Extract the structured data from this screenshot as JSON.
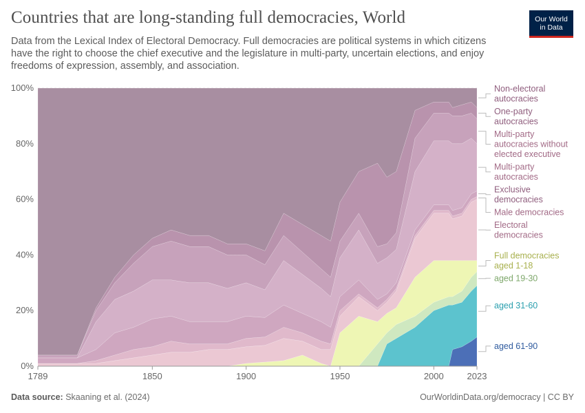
{
  "header": {
    "title": "Countries that are long-standing full democracies, World",
    "subtitle": "Data from the Lexical Index of Electoral Democracy. Full democracies are political systems in which citizens have the right to choose the chief executive and the legislature in multi-party, uncertain elections, and enjoy freedoms of expression, assembly, and association.",
    "logo_line1": "Our World",
    "logo_line2": "in Data"
  },
  "footer": {
    "source_label": "Data source:",
    "source_text": "Skaaning et al. (2024)",
    "url": "OurWorldinData.org/democracy | CC BY"
  },
  "chart_data": {
    "type": "area",
    "stacked": true,
    "normalized": true,
    "x_ticks": [
      1789,
      1850,
      1900,
      1950,
      2000,
      2023
    ],
    "xlim": [
      1789,
      2023
    ],
    "y_ticks": [
      "0%",
      "20%",
      "40%",
      "60%",
      "80%",
      "100%"
    ],
    "ylim": [
      0,
      100
    ],
    "grid": "horizontal",
    "legend_placement": "right",
    "years": [
      1789,
      1800,
      1810,
      1820,
      1830,
      1840,
      1850,
      1860,
      1870,
      1880,
      1890,
      1900,
      1910,
      1920,
      1930,
      1940,
      1945,
      1950,
      1960,
      1970,
      1975,
      1980,
      1990,
      2000,
      2008,
      2010,
      2015,
      2020,
      2023
    ],
    "series": [
      {
        "name": "aged 61-90",
        "label": "aged 61-90",
        "color": "#4c6fb7",
        "label_color": "#2f5b9e",
        "values": [
          0,
          0,
          0,
          0,
          0,
          0,
          0,
          0,
          0,
          0,
          0,
          0,
          0,
          0,
          0,
          0,
          0,
          0,
          0,
          0,
          0,
          0,
          0,
          0,
          0,
          6,
          7,
          9,
          10.5
        ]
      },
      {
        "name": "aged 31-60",
        "label": "aged 31-60",
        "color": "#5cc3ce",
        "label_color": "#2a9fae",
        "values": [
          0,
          0,
          0,
          0,
          0,
          0,
          0,
          0,
          0,
          0,
          0,
          0,
          0,
          0,
          0,
          0,
          0,
          0,
          0,
          0,
          8,
          10,
          14,
          20,
          22,
          16,
          16,
          18,
          18.5
        ]
      },
      {
        "name": "aged 19-30",
        "label": "aged 19-30",
        "color": "#cfe8c0",
        "label_color": "#7fa86c",
        "values": [
          0,
          0,
          0,
          0,
          0,
          0,
          0,
          0,
          0,
          0,
          0,
          0,
          0,
          0,
          0,
          0,
          0,
          0,
          0,
          8,
          4,
          5,
          4,
          3,
          3,
          3,
          4,
          5,
          5
        ]
      },
      {
        "name": "Full democracies aged 1-18",
        "label": "Full democracies aged 1-18",
        "color": "#eef6b4",
        "label_color": "#a8b04e",
        "values": [
          0,
          0,
          0,
          0,
          0,
          0,
          0,
          0,
          0,
          0,
          0,
          1,
          1.5,
          2,
          4,
          1,
          0,
          12,
          18,
          8,
          7,
          6,
          14,
          15,
          13,
          13,
          11,
          6,
          4
        ]
      },
      {
        "name": "Electoral democracies",
        "label": "Electoral democracies",
        "color": "#ebc8d3",
        "label_color": "#a26a86",
        "values": [
          1,
          1,
          1,
          1,
          2,
          3,
          4,
          5,
          5,
          6,
          6,
          6,
          6,
          8,
          5,
          5,
          6,
          6,
          7,
          4,
          4,
          6,
          14,
          17,
          17,
          15,
          16,
          21,
          22
        ]
      },
      {
        "name": "Male democracies",
        "label": "Male democracies",
        "color": "#e0b9cb",
        "label_color": "#a26a86",
        "values": [
          0,
          0,
          0,
          1,
          2,
          3,
          3,
          4,
          3,
          2,
          2,
          3,
          3,
          4,
          3,
          3,
          2,
          2,
          1,
          1,
          1,
          1,
          1,
          1,
          1,
          1,
          1,
          1,
          1
        ]
      },
      {
        "name": "Exclusive democracies",
        "label": "Exclusive democracies",
        "color": "#cfa7c0",
        "label_color": "#8f5d7d",
        "values": [
          2,
          2,
          2,
          4,
          8,
          8,
          10,
          9,
          8,
          8,
          8,
          8,
          7,
          8,
          7,
          7,
          6,
          5,
          5,
          3,
          2,
          2,
          2,
          2,
          2,
          2,
          2,
          2,
          2
        ]
      },
      {
        "name": "Multi-party autocracies",
        "label": "Multi-party autocracies",
        "color": "#d4b1c8",
        "label_color": "#a26a86",
        "values": [
          0,
          0,
          0,
          10,
          12,
          13,
          14,
          13,
          14,
          14,
          12,
          12,
          10,
          16,
          14,
          12,
          11,
          14,
          18,
          13,
          13,
          12,
          21,
          23,
          23,
          24,
          23,
          20,
          17
        ]
      },
      {
        "name": "Multi-party autocracies without elected executive",
        "label": "Multi-party autocracies without elected executive",
        "color": "#c7a2bb",
        "label_color": "#a26a86",
        "values": [
          1,
          1,
          1,
          4,
          6,
          10,
          12,
          14,
          13,
          13,
          12,
          10,
          9,
          9,
          8,
          7,
          7,
          6,
          6,
          6,
          5,
          6,
          12,
          10,
          10,
          10,
          10,
          9,
          9
        ]
      },
      {
        "name": "One-party autocracies",
        "label": "One-party autocracies",
        "color": "#b993ad",
        "label_color": "#8f5d7d",
        "values": [
          0,
          0,
          0,
          1,
          2,
          3,
          3,
          4,
          4,
          4,
          4,
          4,
          5,
          8,
          10,
          12,
          13,
          14,
          15,
          30,
          24,
          22,
          10,
          4,
          4,
          3,
          4,
          4,
          4
        ]
      },
      {
        "name": "Non-electoral autocracies",
        "label": "Non-electoral autocracies",
        "color": "#a88ea1",
        "label_color": "#8f5d7d",
        "values": [
          96,
          96,
          96,
          79,
          68,
          60,
          54,
          51,
          53,
          53,
          56,
          56,
          58.5,
          45,
          49,
          53,
          55,
          41,
          30,
          27,
          32,
          30,
          8,
          5,
          5,
          7,
          6,
          5,
          7
        ]
      }
    ]
  }
}
